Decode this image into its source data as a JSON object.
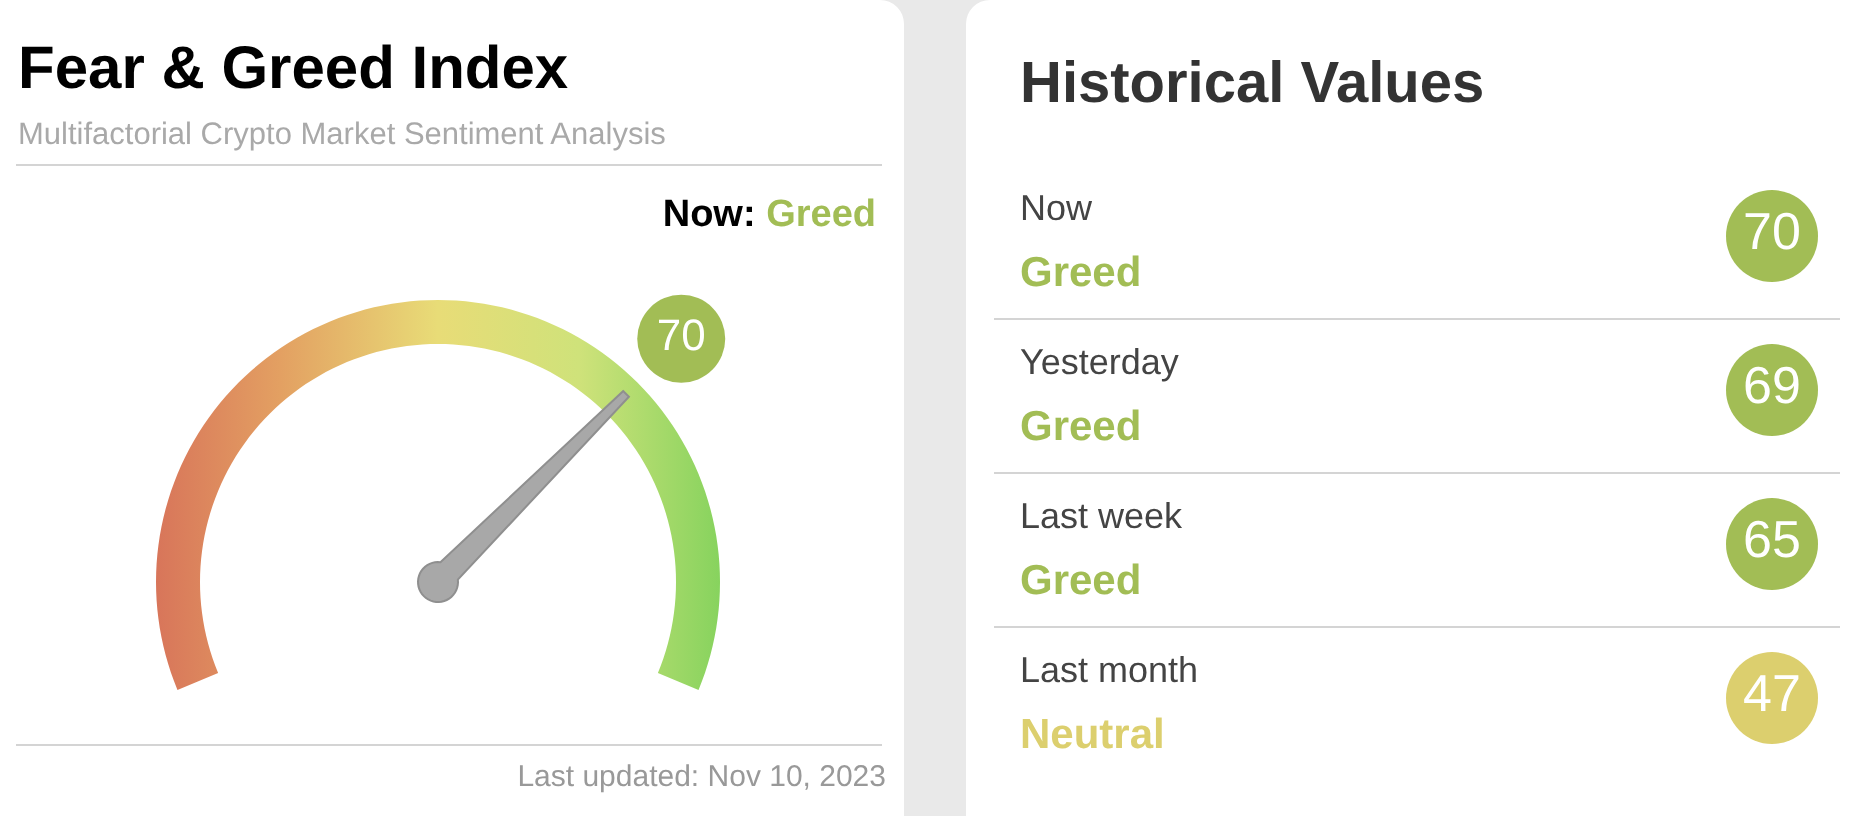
{
  "chart_data": [
    {
      "type": "other",
      "title": "Fear & Greed Index",
      "subtitle": "Multifactorial Crypto Market Sentiment Analysis",
      "values": [
        70
      ],
      "data_labels": true,
      "color": "#a2bd55",
      "annotations": [
        "Now: Greed",
        "Last updated: Nov 10, 2023"
      ]
    },
    {
      "type": "other",
      "title": "Historical Values",
      "values": [
        70,
        69,
        65,
        47
      ],
      "colors": [
        "#a2bd55",
        "#a2bd55",
        "#a2bd55",
        "#dccf6e"
      ],
      "data_labels": true,
      "annotations": [
        "Now",
        "Greed",
        "Yesterday",
        "Greed",
        "Last week",
        "Greed",
        "Last month",
        "Neutral"
      ]
    }
  ]
}
